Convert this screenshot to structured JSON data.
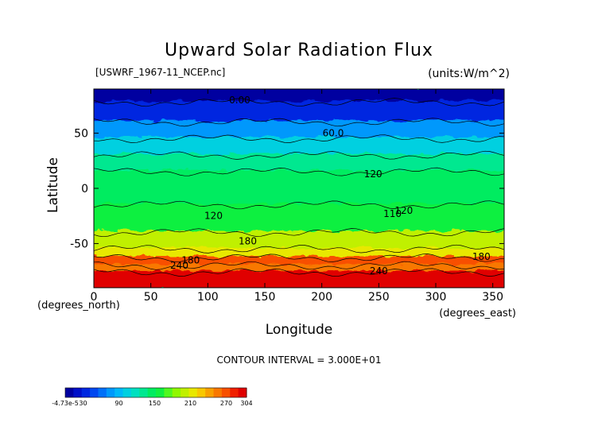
{
  "chart_data": {
    "type": "heatmap",
    "title": "Upward Solar Radiation Flux",
    "file_label": "[USWRF_1967-11_NCEP.nc]",
    "units_label": "(units:W/m^2)",
    "xlabel": "Longitude",
    "x_unit_label": "(degrees_east)",
    "ylabel": "Latitude",
    "y_unit_label": "(degrees_north)",
    "xlim": [
      0,
      360
    ],
    "ylim": [
      -90,
      90
    ],
    "x_ticks": [
      0,
      50,
      100,
      150,
      200,
      250,
      300,
      350
    ],
    "y_ticks": [
      -50,
      0,
      50
    ],
    "contour_interval_text": "CONTOUR INTERVAL = 3.000E+01",
    "contour_labels": [
      {
        "text": "0.00",
        "lon": 128,
        "lat": 80
      },
      {
        "text": "60.0",
        "lon": 210,
        "lat": 50
      },
      {
        "text": "120",
        "lon": 245,
        "lat": 13
      },
      {
        "text": "120",
        "lon": 105,
        "lat": -25
      },
      {
        "text": "180",
        "lon": 135,
        "lat": -48
      },
      {
        "text": "180",
        "lon": 85,
        "lat": -65
      },
      {
        "text": "240",
        "lon": 75,
        "lat": -70
      },
      {
        "text": "240",
        "lon": 250,
        "lat": -75
      },
      {
        "text": "180",
        "lon": 340,
        "lat": -62
      },
      {
        "text": "110",
        "lon": 262,
        "lat": -23
      },
      {
        "text": "120",
        "lon": 272,
        "lat": -20
      }
    ],
    "latitude_bands": [
      {
        "lat_from": 90,
        "lat_to": 78,
        "value": 5
      },
      {
        "lat_from": 78,
        "lat_to": 60,
        "value": 40
      },
      {
        "lat_from": 60,
        "lat_to": 45,
        "value": 75
      },
      {
        "lat_from": 45,
        "lat_to": 30,
        "value": 100
      },
      {
        "lat_from": 30,
        "lat_to": 15,
        "value": 130
      },
      {
        "lat_from": 15,
        "lat_to": -15,
        "value": 150
      },
      {
        "lat_from": -15,
        "lat_to": -40,
        "value": 165
      },
      {
        "lat_from": -40,
        "lat_to": -55,
        "value": 195
      },
      {
        "lat_from": -55,
        "lat_to": -63,
        "value": 215
      },
      {
        "lat_from": -63,
        "lat_to": -70,
        "value": 275
      },
      {
        "lat_from": -70,
        "lat_to": -76,
        "value": 250
      },
      {
        "lat_from": -76,
        "lat_to": -90,
        "value": 295
      }
    ],
    "colorbar": {
      "min_label": "-4.73e-5",
      "tick_labels": [
        "30",
        "90",
        "150",
        "210",
        "270",
        "304"
      ],
      "tick_values": [
        30,
        90,
        150,
        210,
        270,
        304
      ],
      "vmin": 0,
      "vmax": 304,
      "colors": [
        "#0000a0",
        "#0010c8",
        "#0028e0",
        "#0048f0",
        "#0070f8",
        "#0098fc",
        "#00b8f8",
        "#00d0e0",
        "#00e0c0",
        "#00e890",
        "#00ec60",
        "#10f040",
        "#50f820",
        "#90f800",
        "#c0f000",
        "#e8e800",
        "#f8c800",
        "#f8a000",
        "#f87800",
        "#f85000",
        "#f02000",
        "#e00000"
      ]
    }
  }
}
